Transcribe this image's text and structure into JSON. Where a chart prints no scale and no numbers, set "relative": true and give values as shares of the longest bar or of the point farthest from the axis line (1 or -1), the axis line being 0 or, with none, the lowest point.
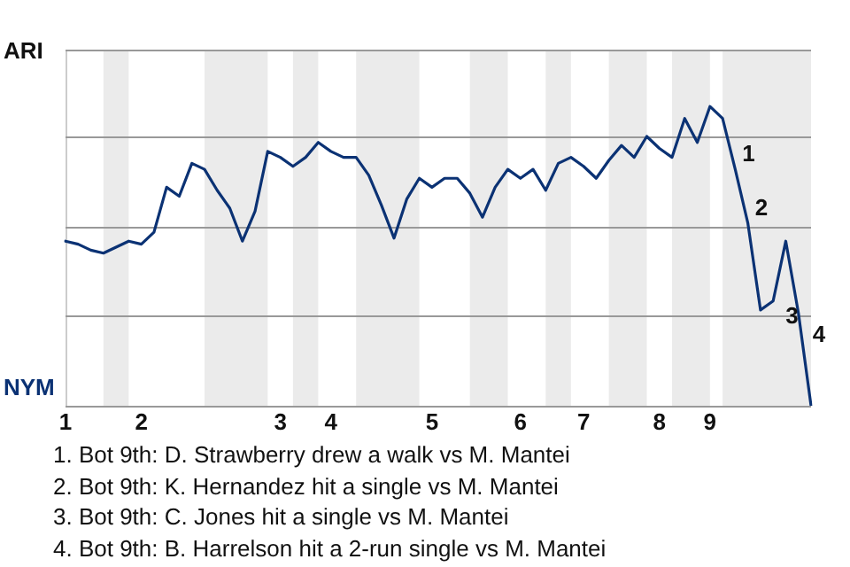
{
  "chart_data": {
    "type": "line",
    "categories": [
      "1",
      null,
      null,
      null,
      null,
      null,
      "2",
      null,
      null,
      null,
      null,
      null,
      null,
      null,
      null,
      null,
      null,
      "3",
      null,
      null,
      null,
      "4",
      null,
      null,
      null,
      null,
      null,
      null,
      null,
      "5",
      null,
      null,
      null,
      null,
      null,
      null,
      "6",
      null,
      null,
      null,
      null,
      "7",
      null,
      null,
      null,
      null,
      null,
      "8",
      null,
      null,
      null,
      "9",
      null,
      null,
      null,
      null,
      null,
      null,
      null,
      null
    ],
    "relative": true,
    "series": [
      {
        "color": "#0b3274",
        "values": [
          0.55,
          0.54,
          0.52,
          0.51,
          0.53,
          0.55,
          0.54,
          0.58,
          0.73,
          0.7,
          0.81,
          0.79,
          0.72,
          0.66,
          0.55,
          0.65,
          0.85,
          0.83,
          0.8,
          0.83,
          0.88,
          0.85,
          0.83,
          0.83,
          0.77,
          0.67,
          0.56,
          0.69,
          0.76,
          0.73,
          0.76,
          0.76,
          0.71,
          0.63,
          0.73,
          0.79,
          0.76,
          0.79,
          0.72,
          0.81,
          0.83,
          0.8,
          0.76,
          0.82,
          0.87,
          0.83,
          0.9,
          0.86,
          0.83,
          0.96,
          0.88,
          1,
          0.96,
          0.79,
          0.61,
          0.32,
          0.35,
          0.55,
          0.31,
          0
        ]
      }
    ],
    "marker": "none",
    "line_style": "solid",
    "ref_lines": [
      {
        "axis": "y",
        "value": 0.3,
        "color": "#999999"
      },
      {
        "axis": "y",
        "value": 0.6,
        "color": "#999999"
      },
      {
        "axis": "y",
        "value": 0.9,
        "color": "#999999"
      },
      {
        "axis": "y",
        "value": 1.19,
        "color": "#999999"
      }
    ],
    "annotations": [
      "ARI",
      "NYM",
      "1",
      {
        "text": "2",
        "y": 0.61
      },
      {
        "text": "3",
        "y": 0.35
      },
      {
        "text": "4",
        "y": 0.31
      },
      "1. Bot 9th: D. Strawberry drew a walk vs M. Mantei",
      "2. Bot 9th: K. Hernandez hit a single vs M. Mantei",
      "3. Bot 9th: C. Jones hit a single vs M. Mantei",
      "4. Bot 9th: B. Harrelson hit a 2-run single vs M. Mantei"
    ]
  }
}
